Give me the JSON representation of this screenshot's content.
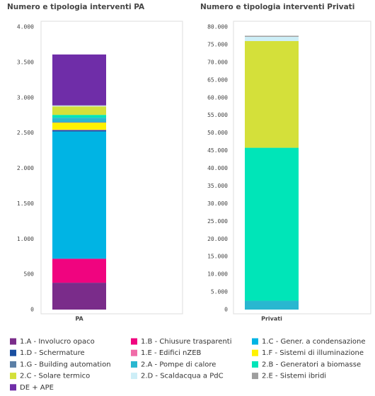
{
  "chart_data": [
    {
      "type": "stacked-bar",
      "title": "Numero e tipologia interventi PA",
      "categories": [
        "PA"
      ],
      "ylim": [
        0,
        4000
      ],
      "yticks": [
        0,
        {
          "value": 500,
          "label": "500"
        },
        {
          "value": 1000,
          "label": "1.000"
        },
        {
          "value": 1500,
          "label": "1.500"
        },
        {
          "value": 2000,
          "label": "2.000"
        },
        {
          "value": 2500,
          "label": "2.500"
        },
        {
          "value": 3000,
          "label": "3.000"
        },
        {
          "value": 3500,
          "label": "3.500"
        },
        {
          "value": 4000,
          "label": "4.000"
        }
      ],
      "series": [
        {
          "name": "1.A - Involucro opaco",
          "color": "#7a2c8a",
          "values": [
            380
          ]
        },
        {
          "name": "1.B - Chiusure trasparenti",
          "color": "#f0047f",
          "values": [
            340
          ]
        },
        {
          "name": "1.C - Gener. a condensazione",
          "color": "#00b4e4",
          "values": [
            1800
          ]
        },
        {
          "name": "1.D - Schermature",
          "color": "#1a4fa0",
          "values": [
            20
          ]
        },
        {
          "name": "1.E - Edifici nZEB",
          "color": "#f06ca8",
          "values": [
            5
          ]
        },
        {
          "name": "1.F - Sistemi di illuminazione",
          "color": "#fff200",
          "values": [
            100
          ]
        },
        {
          "name": "1.G - Building automation",
          "color": "#5b7fa6",
          "values": [
            10
          ]
        },
        {
          "name": "2.A - Pompe di calore",
          "color": "#29b7d0",
          "values": [
            60
          ]
        },
        {
          "name": "2.B - Generatori a biomasse",
          "color": "#00e5b8",
          "values": [
            40
          ]
        },
        {
          "name": "2.C - Solare termico",
          "color": "#d4e03a",
          "values": [
            120
          ]
        },
        {
          "name": "2.D - Scaldacqua a PdC",
          "color": "#cdeef7",
          "values": [
            10
          ]
        },
        {
          "name": "2.E - Sistemi ibridi",
          "color": "#9e9e9e",
          "values": [
            5
          ]
        },
        {
          "name": "DE + APE",
          "color": "#6f2da8",
          "values": [
            720
          ]
        }
      ]
    },
    {
      "type": "stacked-bar",
      "title": "Numero e tipologia interventi Privati",
      "categories": [
        "Privati"
      ],
      "ylim": [
        0,
        80000
      ],
      "yticks": [
        0,
        {
          "value": 5000,
          "label": "5.000"
        },
        {
          "value": 10000,
          "label": "10.000"
        },
        {
          "value": 15000,
          "label": "15.000"
        },
        {
          "value": 20000,
          "label": "20.000"
        },
        {
          "value": 25000,
          "label": "25.000"
        },
        {
          "value": 30000,
          "label": "30.000"
        },
        {
          "value": 35000,
          "label": "35.000"
        },
        {
          "value": 40000,
          "label": "40.000"
        },
        {
          "value": 45000,
          "label": "45.000"
        },
        {
          "value": 50000,
          "label": "50.000"
        },
        {
          "value": 55000,
          "label": "55.000"
        },
        {
          "value": 60000,
          "label": "60.000"
        },
        {
          "value": 65000,
          "label": "65.000"
        },
        {
          "value": 70000,
          "label": "70.000"
        },
        {
          "value": 75000,
          "label": "75.000"
        },
        {
          "value": 80000,
          "label": "80.000"
        }
      ],
      "series": [
        {
          "name": "1.A - Involucro opaco",
          "color": "#7a2c8a",
          "values": [
            0
          ]
        },
        {
          "name": "1.B - Chiusure trasparenti",
          "color": "#f0047f",
          "values": [
            0
          ]
        },
        {
          "name": "1.C - Gener. a condensazione",
          "color": "#00b4e4",
          "values": [
            0
          ]
        },
        {
          "name": "1.D - Schermature",
          "color": "#1a4fa0",
          "values": [
            0
          ]
        },
        {
          "name": "1.E - Edifici nZEB",
          "color": "#f06ca8",
          "values": [
            0
          ]
        },
        {
          "name": "1.F - Sistemi di illuminazione",
          "color": "#fff200",
          "values": [
            0
          ]
        },
        {
          "name": "1.G - Building automation",
          "color": "#5b7fa6",
          "values": [
            0
          ]
        },
        {
          "name": "2.A - Pompe di calore",
          "color": "#29b7d0",
          "values": [
            2500
          ]
        },
        {
          "name": "2.B - Generatori a biomasse",
          "color": "#00e5b8",
          "values": [
            43300
          ]
        },
        {
          "name": "2.C - Solare termico",
          "color": "#d4e03a",
          "values": [
            30200
          ]
        },
        {
          "name": "2.D - Scaldacqua a PdC",
          "color": "#cdeef7",
          "values": [
            1200
          ]
        },
        {
          "name": "2.E - Sistemi ibridi",
          "color": "#9e9e9e",
          "values": [
            300
          ]
        },
        {
          "name": "DE + APE",
          "color": "#6f2da8",
          "values": [
            0
          ]
        }
      ]
    }
  ]
}
